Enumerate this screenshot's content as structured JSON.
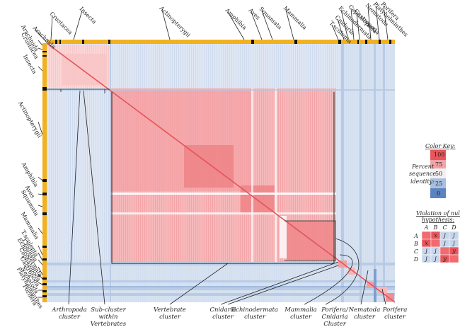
{
  "taxa": [
    "Crustacea",
    "Arachnida",
    "Insecta",
    "Actinopterygii",
    "Amphibia",
    "Aves",
    "Squamata",
    "Mammalia",
    "T.sculenta",
    "Cnidaria",
    "Echinodermata",
    "Cephalopoda",
    "Gastropoda",
    "Nematoda",
    "Platyhelminthes",
    "Porifera"
  ],
  "top_labels": [
    "Crustacea",
    "Arachnida",
    "Insecta",
    "Actinopterygii",
    "Amphibia",
    "Aves",
    "Squamata",
    "Mammalia",
    "T.sculenta",
    "Cnidaria",
    "Echinodermata",
    "Cephalopoda",
    "Gastropoda",
    "Nematoda",
    "Platyhelminthes",
    "Porifera"
  ],
  "left_labels": [
    "Arachnida",
    "Crustacea",
    "Insecta",
    "Actinopterygii",
    "Amphibia",
    "Aves",
    "Squamata",
    "Mammalia",
    "T.sculenta",
    "Cnidaria",
    "Echinodermata",
    "Cephalopoda",
    "Gastropoda",
    "Nematoda",
    "Platyhelminthes",
    "Porifera"
  ],
  "bottom_labels": [
    {
      "lines": [
        "Arthropoda",
        "cluster"
      ]
    },
    {
      "lines": [
        "Sub-cluster",
        "within",
        "Vertebrates"
      ]
    },
    {
      "lines": [
        "Vertebrate",
        "cluster"
      ]
    },
    {
      "lines": [
        "Cnidaria",
        "cluster"
      ]
    },
    {
      "lines": [
        "Echinodermata",
        "cluster"
      ]
    },
    {
      "lines": [
        "Mammalia",
        "cluster"
      ]
    },
    {
      "lines": [
        "Porifera/",
        "Cnidaria",
        "Cluster"
      ]
    },
    {
      "lines": [
        "Nematoda",
        "cluster"
      ]
    },
    {
      "lines": [
        "Porifera",
        "cluster"
      ]
    }
  ],
  "color_key": {
    "title": "Color Key:",
    "side_lines": [
      "Percent",
      "sequence",
      "identity:"
    ],
    "ticks": [
      "100",
      "75",
      "50",
      "25",
      "0"
    ],
    "colors": {
      "c100": "#e8555b",
      "c75": "#f3a3a6",
      "c50": "#f4f0f2",
      "c25": "#a9bfdf",
      "c0": "#5b83c0"
    }
  },
  "violation": {
    "title_lines": [
      "Violation of null",
      "hypothesis:"
    ],
    "cols": [
      "A",
      "B",
      "C",
      "D"
    ],
    "rows": [
      {
        "label": "A",
        "cells": [
          "",
          "x",
          "j",
          "j"
        ]
      },
      {
        "label": "B",
        "cells": [
          "x",
          "",
          "j",
          "j"
        ]
      },
      {
        "label": "C",
        "cells": [
          "j",
          "j",
          "",
          "y"
        ]
      },
      {
        "label": "D",
        "cells": [
          "j",
          "j",
          "y",
          ""
        ]
      }
    ]
  },
  "colors": {
    "taxon_bar": "#f2b21d",
    "red_strong": "#ec7b7f",
    "red_mid": "#f6b5b7",
    "red_light": "#fad7d8",
    "blue_light": "#dde6f3",
    "blue_mid": "#b4c8e4",
    "blue_dark": "#6d93cb",
    "white": "#fbfbfd"
  }
}
